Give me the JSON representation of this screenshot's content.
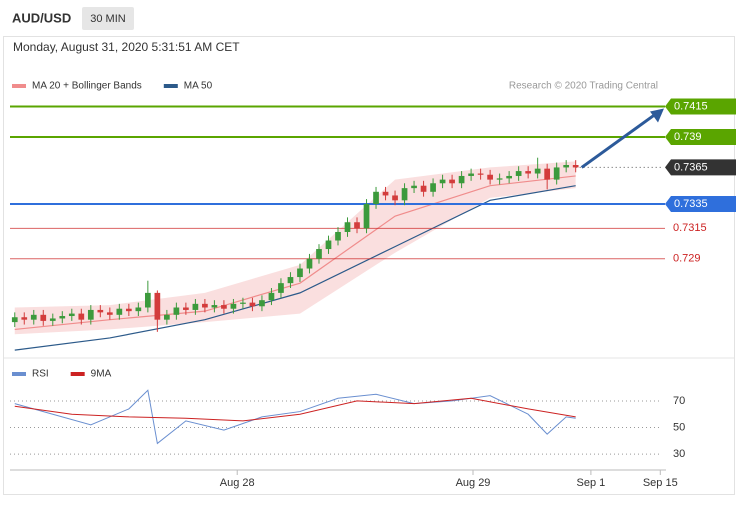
{
  "header": {
    "symbol": "AUD/USD",
    "timeframe": "30 MIN",
    "datetime": "Monday, August 31, 2020 5:31:51 AM CET"
  },
  "chart_data": [
    {
      "type": "candlestick",
      "legend": [
        {
          "name": "MA 20 + Bollinger Bands",
          "color": "#f08c8c"
        },
        {
          "name": "MA 50",
          "color": "#2c5a8a"
        }
      ],
      "credit": "Research © 2020 Trading Central",
      "up_color": "#3c9a3c",
      "down_color": "#d33c3c",
      "open": [
        0.7238,
        0.7242,
        0.724,
        0.7244,
        0.7239,
        0.7241,
        0.7243,
        0.7245,
        0.724,
        0.7248,
        0.7246,
        0.7244,
        0.7249,
        0.7247,
        0.725,
        0.7262,
        0.724,
        0.7244,
        0.725,
        0.7248,
        0.7253,
        0.725,
        0.7252,
        0.7249,
        0.7253,
        0.7254,
        0.7251,
        0.7256,
        0.7262,
        0.727,
        0.7275,
        0.7282,
        0.729,
        0.7298,
        0.7305,
        0.7312,
        0.732,
        0.7315,
        0.7335,
        0.7345,
        0.7342,
        0.7338,
        0.7348,
        0.735,
        0.7345,
        0.7352,
        0.7355,
        0.7352,
        0.7358,
        0.736,
        0.7359,
        0.7355,
        0.7356,
        0.7358,
        0.7362,
        0.736,
        0.7364,
        0.7355,
        0.7365,
        0.7367
      ],
      "high": [
        0.7246,
        0.7246,
        0.7248,
        0.7248,
        0.7245,
        0.7247,
        0.7249,
        0.7249,
        0.7252,
        0.7252,
        0.725,
        0.7253,
        0.7253,
        0.7254,
        0.7272,
        0.7264,
        0.7248,
        0.7254,
        0.7254,
        0.7257,
        0.7257,
        0.7256,
        0.7256,
        0.7257,
        0.7258,
        0.7258,
        0.726,
        0.7266,
        0.7274,
        0.7279,
        0.7286,
        0.7294,
        0.7302,
        0.7309,
        0.7316,
        0.7324,
        0.7324,
        0.7339,
        0.7349,
        0.7349,
        0.7346,
        0.7352,
        0.7354,
        0.7354,
        0.7356,
        0.7359,
        0.7359,
        0.7362,
        0.7364,
        0.7364,
        0.7363,
        0.736,
        0.7362,
        0.7366,
        0.7366,
        0.7373,
        0.7368,
        0.7369,
        0.7371,
        0.7371
      ],
      "low": [
        0.7234,
        0.7236,
        0.7236,
        0.7235,
        0.7235,
        0.7237,
        0.7239,
        0.7236,
        0.7236,
        0.7242,
        0.724,
        0.724,
        0.7243,
        0.7243,
        0.7246,
        0.723,
        0.7236,
        0.724,
        0.7244,
        0.7244,
        0.7246,
        0.7246,
        0.7245,
        0.7245,
        0.7249,
        0.7247,
        0.7247,
        0.7252,
        0.7258,
        0.7266,
        0.7271,
        0.7278,
        0.7286,
        0.7294,
        0.7301,
        0.7308,
        0.7311,
        0.7311,
        0.7331,
        0.7338,
        0.7334,
        0.7334,
        0.7344,
        0.7341,
        0.7341,
        0.7348,
        0.7348,
        0.7348,
        0.7354,
        0.7355,
        0.7351,
        0.7351,
        0.7352,
        0.7354,
        0.7356,
        0.7356,
        0.7347,
        0.7351,
        0.7361,
        0.7361
      ],
      "close": [
        0.7242,
        0.724,
        0.7244,
        0.7239,
        0.7241,
        0.7243,
        0.7245,
        0.724,
        0.7248,
        0.7246,
        0.7244,
        0.7249,
        0.7247,
        0.725,
        0.7262,
        0.724,
        0.7244,
        0.725,
        0.7248,
        0.7253,
        0.725,
        0.7252,
        0.7249,
        0.7253,
        0.7254,
        0.7251,
        0.7256,
        0.7262,
        0.727,
        0.7275,
        0.7282,
        0.729,
        0.7298,
        0.7305,
        0.7312,
        0.732,
        0.7315,
        0.7335,
        0.7345,
        0.7342,
        0.7338,
        0.7348,
        0.735,
        0.7345,
        0.7352,
        0.7355,
        0.7352,
        0.7358,
        0.736,
        0.7359,
        0.7355,
        0.7356,
        0.7358,
        0.7362,
        0.736,
        0.7364,
        0.7355,
        0.7365,
        0.7367,
        0.7365
      ],
      "overlay_x": [
        0,
        10,
        20,
        30,
        40,
        50,
        59
      ],
      "ma20": [
        0.7232,
        0.724,
        0.7247,
        0.727,
        0.7325,
        0.735,
        0.7358
      ],
      "band_upper": [
        0.725,
        0.7252,
        0.7262,
        0.7285,
        0.7355,
        0.7365,
        0.737
      ],
      "band_lower": [
        0.7228,
        0.7232,
        0.7238,
        0.7245,
        0.7295,
        0.734,
        0.7348
      ],
      "ma50": [
        0.7215,
        0.7225,
        0.724,
        0.7262,
        0.73,
        0.7338,
        0.735
      ],
      "levels": [
        {
          "value": 0.7415,
          "color": "#5aa500",
          "style": "box"
        },
        {
          "value": 0.739,
          "color": "#5aa500",
          "style": "box"
        },
        {
          "value": 0.7365,
          "color": "#333333",
          "style": "current"
        },
        {
          "value": 0.7335,
          "color": "#2f6fdc",
          "style": "box"
        },
        {
          "value": 0.7315,
          "color": "#cc2222",
          "style": "text"
        },
        {
          "value": 0.729,
          "color": "#cc2222",
          "style": "text"
        }
      ],
      "xlim": [
        -0.5,
        68.5
      ],
      "ylim": [
        0.7211,
        0.7445
      ]
    },
    {
      "type": "line",
      "legend": [
        {
          "name": "RSI",
          "color": "#6a8fd0"
        },
        {
          "name": "9MA",
          "color": "#cc2222"
        }
      ],
      "series": [
        {
          "name": "RSI",
          "color": "#6a8fd0",
          "x": [
            0,
            4,
            8,
            12,
            14,
            15,
            18,
            22,
            26,
            30,
            34,
            38,
            42,
            46,
            50,
            54,
            56,
            58,
            59
          ],
          "values": [
            68,
            60,
            52,
            64,
            78,
            38,
            55,
            48,
            58,
            62,
            72,
            75,
            68,
            70,
            74,
            60,
            45,
            58,
            57
          ]
        },
        {
          "name": "9MA",
          "color": "#cc2222",
          "x": [
            0,
            6,
            12,
            18,
            24,
            30,
            36,
            42,
            48,
            54,
            59
          ],
          "values": [
            66,
            60,
            58,
            57,
            55,
            60,
            70,
            68,
            72,
            64,
            58
          ]
        }
      ],
      "xlim": [
        -0.5,
        68.5
      ],
      "ylim": [
        18,
        82
      ],
      "yticks": [
        70,
        50,
        30
      ],
      "xticks": [
        {
          "value": 23.4,
          "label": "Aug 28"
        },
        {
          "value": 48.2,
          "label": "Aug 29"
        },
        {
          "value": 60.6,
          "label": "Sep 1"
        },
        {
          "value": 67.9,
          "label": "Sep 15"
        }
      ]
    }
  ]
}
